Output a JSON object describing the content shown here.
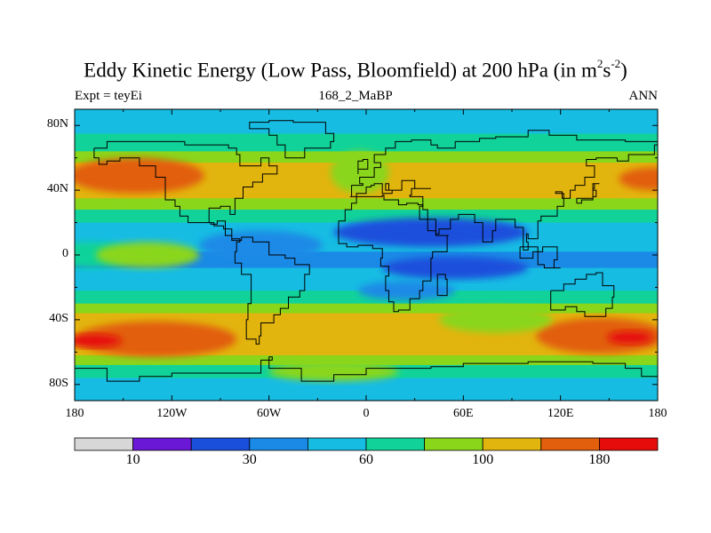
{
  "plot": {
    "title_main": "Eddy Kinetic Energy (Low Pass, Bloomfield) at 200 hPa (in m",
    "title_sup1": "2",
    "title_mid": "s",
    "title_sup2": "-2",
    "title_end": ")",
    "left_string": "Expt = teyEi",
    "center_string": "168_2_MaBP",
    "right_string": "ANN"
  },
  "axes": {
    "lat_labels": [
      "80N",
      "40N",
      "0",
      "40S",
      "80S"
    ],
    "lon_labels": [
      "180",
      "120W",
      "60W",
      "0",
      "60E",
      "120E",
      "180"
    ]
  },
  "colorbar": {
    "colors": [
      "#d7d7d7",
      "#6b18d6",
      "#1a4fdc",
      "#1a8ae6",
      "#17bce3",
      "#11d39a",
      "#8ad61b",
      "#e2b40e",
      "#e25f0d",
      "#e60c0c"
    ],
    "labels": [
      "10",
      "30",
      "60",
      "100",
      "180"
    ]
  },
  "map_data": {
    "projection": "cylindrical-equidistant",
    "lat_range": [
      -90,
      90
    ],
    "lon_range": [
      -180,
      180
    ],
    "contour_levels": [
      10,
      20,
      30,
      40,
      60,
      80,
      100,
      140,
      180
    ],
    "bands": [
      {
        "lat_from": 90,
        "lat_to": 75,
        "level": 4
      },
      {
        "lat_from": 75,
        "lat_to": 64,
        "level": 5
      },
      {
        "lat_from": 64,
        "lat_to": 57,
        "level": 6
      },
      {
        "lat_from": 57,
        "lat_to": 35,
        "level": 7
      },
      {
        "lat_from": 35,
        "lat_to": 28,
        "level": 6
      },
      {
        "lat_from": 28,
        "lat_to": 20,
        "level": 5
      },
      {
        "lat_from": 20,
        "lat_to": 2,
        "level": 4
      },
      {
        "lat_from": 2,
        "lat_to": -8,
        "level": 3
      },
      {
        "lat_from": -8,
        "lat_to": -22,
        "level": 4
      },
      {
        "lat_from": -22,
        "lat_to": -30,
        "level": 5
      },
      {
        "lat_from": -30,
        "lat_to": -36,
        "level": 6
      },
      {
        "lat_from": -36,
        "lat_to": -62,
        "level": 7
      },
      {
        "lat_from": -62,
        "lat_to": -68,
        "level": 6
      },
      {
        "lat_from": -68,
        "lat_to": -76,
        "level": 5
      },
      {
        "lat_from": -76,
        "lat_to": -90,
        "level": 4
      }
    ],
    "patches": [
      {
        "lon": -142,
        "lat": 49,
        "rlon": 42,
        "rlat": 11,
        "level": 8
      },
      {
        "lon": 178,
        "lat": 47,
        "rlon": 22,
        "rlat": 7,
        "level": 8
      },
      {
        "lon": -4,
        "lat": 51,
        "rlon": 18,
        "rlat": 13,
        "level": 6
      },
      {
        "lon": -170,
        "lat": 0,
        "rlon": 28,
        "rlat": 8,
        "level": 5
      },
      {
        "lon": -135,
        "lat": 0,
        "rlon": 32,
        "rlat": 8,
        "level": 6
      },
      {
        "lon": -65,
        "lat": 6,
        "rlon": 38,
        "rlat": 9,
        "level": 3
      },
      {
        "lon": 40,
        "lat": 14,
        "rlon": 60,
        "rlat": 9,
        "level": 2
      },
      {
        "lon": 55,
        "lat": -8,
        "rlon": 45,
        "rlat": 7,
        "level": 2
      },
      {
        "lon": 25,
        "lat": -22,
        "rlon": 30,
        "rlat": 6,
        "level": 3
      },
      {
        "lon": -130,
        "lat": -52,
        "rlon": 50,
        "rlat": 11,
        "level": 8
      },
      {
        "lon": -168,
        "lat": -53,
        "rlon": 17,
        "rlat": 4,
        "level": 9
      },
      {
        "lon": 145,
        "lat": -50,
        "rlon": 40,
        "rlat": 11,
        "level": 8
      },
      {
        "lon": 163,
        "lat": -51,
        "rlon": 14,
        "rlat": 4,
        "level": 9
      },
      {
        "lon": -20,
        "lat": -72,
        "rlon": 40,
        "rlat": 6,
        "level": 6
      },
      {
        "lon": 80,
        "lat": -40,
        "rlon": 35,
        "rlat": 8,
        "level": 6
      }
    ],
    "coastlines": [
      [
        [
          -168,
          66
        ],
        [
          -160,
          70
        ],
        [
          -142,
          70
        ],
        [
          -128,
          70
        ],
        [
          -112,
          68
        ],
        [
          -96,
          68
        ],
        [
          -85,
          66
        ],
        [
          -80,
          62
        ],
        [
          -78,
          55
        ],
        [
          -65,
          60
        ],
        [
          -60,
          55
        ],
        [
          -55,
          50
        ],
        [
          -64,
          45
        ],
        [
          -70,
          42
        ],
        [
          -76,
          35
        ],
        [
          -81,
          31
        ],
        [
          -81,
          25
        ],
        [
          -84,
          30
        ],
        [
          -90,
          29
        ],
        [
          -97,
          26
        ],
        [
          -97,
          20
        ],
        [
          -94,
          18
        ],
        [
          -88,
          16
        ],
        [
          -83,
          10
        ],
        [
          -78,
          8
        ],
        [
          -80,
          2
        ],
        [
          -81,
          -5
        ],
        [
          -77,
          -12
        ],
        [
          -71,
          -18
        ],
        [
          -71,
          -30
        ],
        [
          -73,
          -40
        ],
        [
          -74,
          -52
        ],
        [
          -68,
          -55
        ],
        [
          -66,
          -50
        ],
        [
          -65,
          -42
        ],
        [
          -57,
          -37
        ],
        [
          -53,
          -33
        ],
        [
          -48,
          -26
        ],
        [
          -41,
          -22
        ],
        [
          -38,
          -12
        ],
        [
          -35,
          -6
        ],
        [
          -44,
          -2
        ],
        [
          -50,
          0
        ],
        [
          -60,
          8
        ],
        [
          -70,
          11
        ],
        [
          -77,
          9
        ],
        [
          -83,
          12
        ],
        [
          -87,
          15
        ],
        [
          -87,
          21
        ],
        [
          -92,
          19
        ],
        [
          -96,
          20
        ],
        [
          -105,
          20
        ],
        [
          -110,
          24
        ],
        [
          -115,
          30
        ],
        [
          -118,
          34
        ],
        [
          -124,
          40
        ],
        [
          -124,
          48
        ],
        [
          -130,
          55
        ],
        [
          -140,
          60
        ],
        [
          -152,
          58
        ],
        [
          -160,
          56
        ],
        [
          -165,
          60
        ],
        [
          -168,
          66
        ]
      ],
      [
        [
          -50,
          60
        ],
        [
          -43,
          60
        ],
        [
          -38,
          66
        ],
        [
          -22,
          70
        ],
        [
          -20,
          75
        ],
        [
          -25,
          82
        ],
        [
          -45,
          83
        ],
        [
          -60,
          82
        ],
        [
          -72,
          78
        ],
        [
          -60,
          74
        ],
        [
          -55,
          68
        ],
        [
          -50,
          60
        ]
      ],
      [
        [
          -10,
          36
        ],
        [
          -9,
          43
        ],
        [
          -2,
          44
        ],
        [
          -4,
          48
        ],
        [
          5,
          54
        ],
        [
          9,
          57
        ],
        [
          5,
          62
        ],
        [
          12,
          66
        ],
        [
          18,
          70
        ],
        [
          28,
          71
        ],
        [
          40,
          68
        ],
        [
          44,
          66
        ],
        [
          55,
          70
        ],
        [
          70,
          72
        ],
        [
          80,
          73
        ],
        [
          100,
          77
        ],
        [
          113,
          74
        ],
        [
          130,
          71
        ],
        [
          150,
          71
        ],
        [
          160,
          70
        ],
        [
          170,
          70
        ],
        [
          180,
          68
        ],
        [
          178,
          62
        ],
        [
          162,
          58
        ],
        [
          155,
          60
        ],
        [
          142,
          59
        ],
        [
          136,
          55
        ],
        [
          141,
          48
        ],
        [
          135,
          43
        ],
        [
          129,
          40
        ],
        [
          126,
          35
        ],
        [
          121,
          39
        ],
        [
          117,
          38
        ],
        [
          122,
          30
        ],
        [
          118,
          24
        ],
        [
          108,
          21
        ],
        [
          106,
          10
        ],
        [
          100,
          13
        ],
        [
          99,
          8
        ],
        [
          100,
          3
        ],
        [
          97,
          17
        ],
        [
          92,
          22
        ],
        [
          88,
          22
        ],
        [
          80,
          15
        ],
        [
          78,
          8
        ],
        [
          72,
          20
        ],
        [
          67,
          25
        ],
        [
          58,
          25
        ],
        [
          57,
          22
        ],
        [
          52,
          16
        ],
        [
          45,
          13
        ],
        [
          43,
          15
        ],
        [
          38,
          22
        ],
        [
          33,
          30
        ],
        [
          35,
          36
        ],
        [
          27,
          37
        ],
        [
          28,
          41
        ],
        [
          40,
          41
        ],
        [
          30,
          46
        ],
        [
          22,
          40
        ],
        [
          20,
          40
        ],
        [
          14,
          44
        ],
        [
          12,
          40
        ],
        [
          16,
          38
        ],
        [
          10,
          44
        ],
        [
          5,
          43
        ],
        [
          3,
          42
        ],
        [
          0,
          38
        ],
        [
          -6,
          36
        ],
        [
          -10,
          36
        ]
      ],
      [
        [
          -17,
          15
        ],
        [
          -17,
          21
        ],
        [
          -13,
          28
        ],
        [
          -9,
          32
        ],
        [
          -6,
          36
        ],
        [
          0,
          36
        ],
        [
          10,
          37
        ],
        [
          11,
          34
        ],
        [
          20,
          31
        ],
        [
          25,
          32
        ],
        [
          32,
          31
        ],
        [
          35,
          28
        ],
        [
          38,
          22
        ],
        [
          43,
          12
        ],
        [
          51,
          12
        ],
        [
          50,
          2
        ],
        [
          41,
          -2
        ],
        [
          40,
          -10
        ],
        [
          40,
          -16
        ],
        [
          35,
          -22
        ],
        [
          33,
          -27
        ],
        [
          27,
          -34
        ],
        [
          20,
          -35
        ],
        [
          17,
          -29
        ],
        [
          14,
          -22
        ],
        [
          12,
          -13
        ],
        [
          14,
          -7
        ],
        [
          9,
          -2
        ],
        [
          10,
          4
        ],
        [
          4,
          6
        ],
        [
          -5,
          5
        ],
        [
          -12,
          7
        ],
        [
          -17,
          15
        ]
      ],
      [
        [
          114,
          -22
        ],
        [
          122,
          -18
        ],
        [
          129,
          -15
        ],
        [
          136,
          -12
        ],
        [
          142,
          -11
        ],
        [
          146,
          -19
        ],
        [
          153,
          -26
        ],
        [
          152,
          -33
        ],
        [
          148,
          -38
        ],
        [
          141,
          -38
        ],
        [
          135,
          -35
        ],
        [
          130,
          -32
        ],
        [
          123,
          -34
        ],
        [
          116,
          -34
        ],
        [
          114,
          -27
        ],
        [
          114,
          -22
        ]
      ],
      [
        [
          44,
          -25
        ],
        [
          47,
          -25
        ],
        [
          50,
          -15
        ],
        [
          49,
          -12
        ],
        [
          44,
          -16
        ],
        [
          44,
          -25
        ]
      ],
      [
        [
          95,
          5
        ],
        [
          106,
          -6
        ],
        [
          110,
          -8
        ],
        [
          120,
          -8
        ],
        [
          116,
          -3
        ],
        [
          118,
          5
        ],
        [
          109,
          2
        ],
        [
          103,
          -2
        ],
        [
          95,
          5
        ]
      ],
      [
        [
          -5,
          50
        ],
        [
          -5,
          58
        ],
        [
          -2,
          59
        ],
        [
          1,
          53
        ],
        [
          -5,
          50
        ]
      ],
      [
        [
          130,
          32
        ],
        [
          133,
          34
        ],
        [
          140,
          36
        ],
        [
          142,
          40
        ],
        [
          140,
          44
        ],
        [
          144,
          44
        ],
        [
          141,
          41
        ],
        [
          140,
          35
        ],
        [
          130,
          32
        ]
      ],
      [
        [
          -180,
          -70
        ],
        [
          -160,
          -78
        ],
        [
          -140,
          -75
        ],
        [
          -120,
          -73
        ],
        [
          -100,
          -73
        ],
        [
          -80,
          -73
        ],
        [
          -65,
          -65
        ],
        [
          -58,
          -63
        ],
        [
          -60,
          -70
        ],
        [
          -40,
          -78
        ],
        [
          -20,
          -74
        ],
        [
          0,
          -70
        ],
        [
          20,
          -70
        ],
        [
          40,
          -69
        ],
        [
          60,
          -67
        ],
        [
          80,
          -67
        ],
        [
          100,
          -66
        ],
        [
          120,
          -66
        ],
        [
          140,
          -67
        ],
        [
          160,
          -70
        ],
        [
          170,
          -75
        ],
        [
          180,
          -78
        ]
      ]
    ]
  }
}
